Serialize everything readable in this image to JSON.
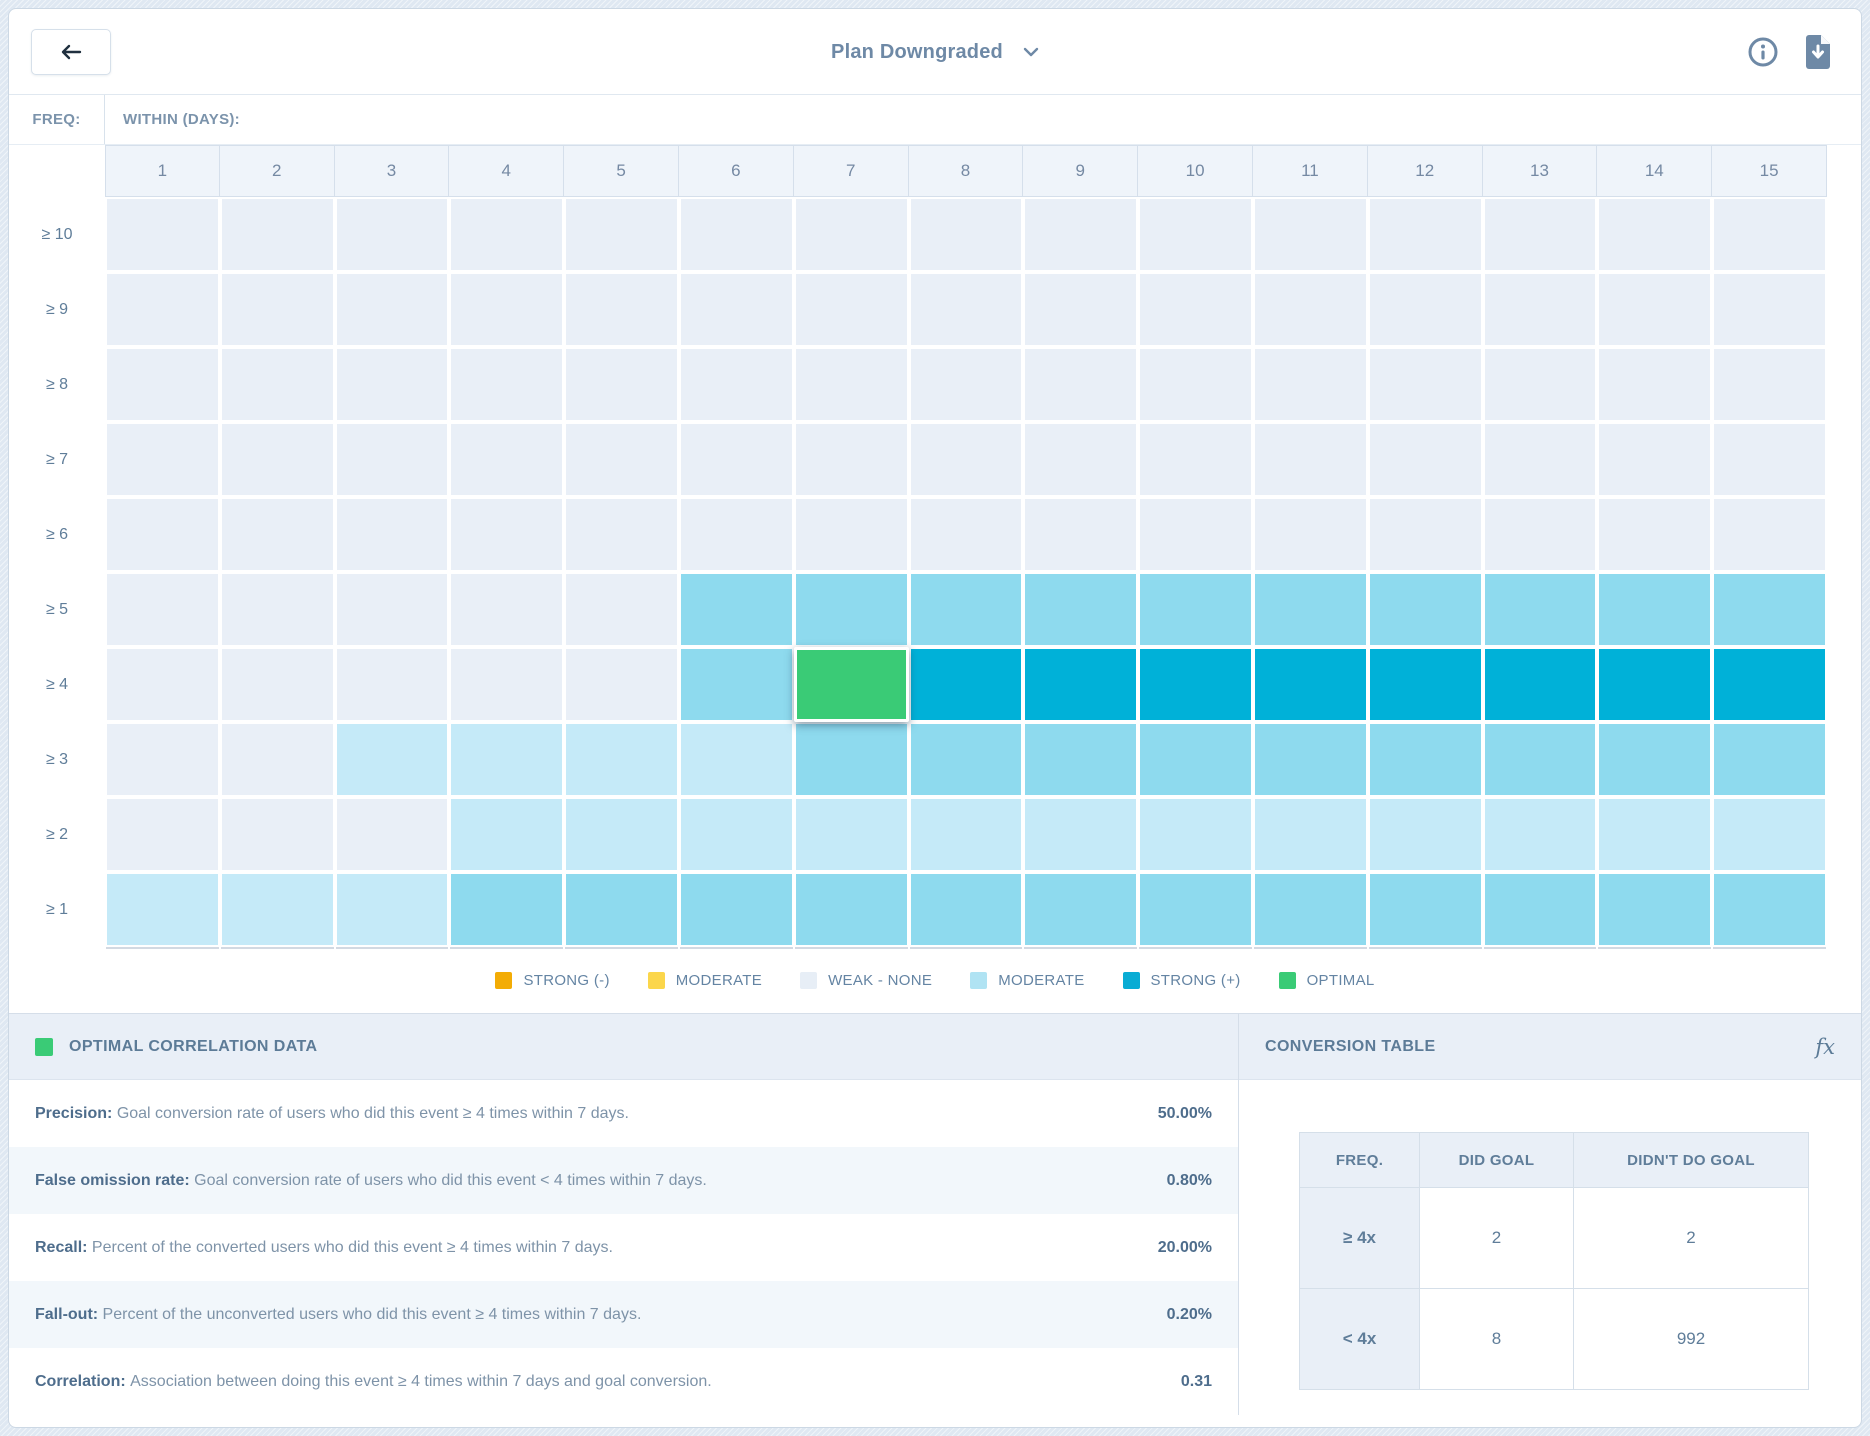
{
  "topbar": {
    "title": "Plan Downgraded",
    "icons": {
      "back": "back-arrow",
      "dropdown": "chevron-down",
      "info": "info-circle",
      "export": "download-document"
    }
  },
  "heatmap": {
    "freq_label": "FREQ:",
    "within_label": "WITHIN (DAYS):",
    "columns": [
      "1",
      "2",
      "3",
      "4",
      "5",
      "6",
      "7",
      "8",
      "9",
      "10",
      "11",
      "12",
      "13",
      "14",
      "15"
    ],
    "rows": [
      {
        "label": "≥ 10",
        "cells": [
          "w",
          "w",
          "w",
          "w",
          "w",
          "w",
          "w",
          "w",
          "w",
          "w",
          "w",
          "w",
          "w",
          "w",
          "w"
        ]
      },
      {
        "label": "≥ 9",
        "cells": [
          "w",
          "w",
          "w",
          "w",
          "w",
          "w",
          "w",
          "w",
          "w",
          "w",
          "w",
          "w",
          "w",
          "w",
          "w"
        ]
      },
      {
        "label": "≥ 8",
        "cells": [
          "w",
          "w",
          "w",
          "w",
          "w",
          "w",
          "w",
          "w",
          "w",
          "w",
          "w",
          "w",
          "w",
          "w",
          "w"
        ]
      },
      {
        "label": "≥ 7",
        "cells": [
          "w",
          "w",
          "w",
          "w",
          "w",
          "w",
          "w",
          "w",
          "w",
          "w",
          "w",
          "w",
          "w",
          "w",
          "w"
        ]
      },
      {
        "label": "≥ 6",
        "cells": [
          "w",
          "w",
          "w",
          "w",
          "w",
          "w",
          "w",
          "w",
          "w",
          "w",
          "w",
          "w",
          "w",
          "w",
          "w"
        ]
      },
      {
        "label": "≥ 5",
        "cells": [
          "w",
          "w",
          "w",
          "w",
          "w",
          "m",
          "m",
          "m",
          "m",
          "m",
          "m",
          "m",
          "m",
          "m",
          "m"
        ]
      },
      {
        "label": "≥ 4",
        "cells": [
          "w",
          "w",
          "w",
          "w",
          "w",
          "m",
          "o",
          "s",
          "s",
          "s",
          "s",
          "s",
          "s",
          "s",
          "s"
        ]
      },
      {
        "label": "≥ 3",
        "cells": [
          "w",
          "w",
          "l",
          "l",
          "l",
          "l",
          "m",
          "m",
          "m",
          "m",
          "m",
          "m",
          "m",
          "m",
          "m"
        ]
      },
      {
        "label": "≥ 2",
        "cells": [
          "w",
          "w",
          "w",
          "l",
          "l",
          "l",
          "l",
          "l",
          "l",
          "l",
          "l",
          "l",
          "l",
          "l",
          "l"
        ]
      },
      {
        "label": "≥ 1",
        "cells": [
          "l",
          "l",
          "l",
          "m",
          "m",
          "m",
          "m",
          "m",
          "m",
          "m",
          "m",
          "m",
          "m",
          "m",
          "m"
        ]
      }
    ],
    "selected": {
      "row_index": 6,
      "col_index": 6,
      "row_label": "≥ 4",
      "column": "7"
    },
    "colors": {
      "w": "#e9eff7",
      "l": "#c5eaf8",
      "m": "#8edaee",
      "s": "#00b1d8",
      "o": "#3acb76"
    }
  },
  "legend": {
    "items": [
      {
        "label": "STRONG (-)",
        "color": "#f3ac05",
        "pattern": false
      },
      {
        "label": "MODERATE",
        "color": "#fbd64b",
        "pattern": false
      },
      {
        "label": "WEAK - NONE",
        "color": "#e7eef6",
        "pattern": false
      },
      {
        "label": "MODERATE",
        "color": "#8edaee",
        "pattern": true
      },
      {
        "label": "STRONG (+)",
        "color": "#09acd4",
        "pattern": false
      },
      {
        "label": "OPTIMAL",
        "color": "#3acb76",
        "pattern": false
      }
    ]
  },
  "optimal_panel": {
    "title": "OPTIMAL CORRELATION DATA",
    "swatch_color": "#3acb76",
    "metrics": [
      {
        "label": "Precision: ",
        "description": "Goal conversion rate of users who did this event ≥ 4 times within 7 days.",
        "value": "50.00%"
      },
      {
        "label": "False omission rate: ",
        "description": "Goal conversion rate of users who did this event < 4 times within 7 days.",
        "value": "0.80%"
      },
      {
        "label": "Recall: ",
        "description": "Percent of the converted users who did this event ≥ 4 times within 7 days.",
        "value": "20.00%"
      },
      {
        "label": "Fall-out: ",
        "description": "Percent of the unconverted users who did this event ≥ 4 times within 7 days.",
        "value": "0.20%"
      },
      {
        "label": "Correlation: ",
        "description": "Association between doing this event ≥ 4 times within 7 days and goal conversion.",
        "value": "0.31"
      }
    ]
  },
  "conversion_panel": {
    "title": "CONVERSION TABLE",
    "fx_label": "fx",
    "table": {
      "headers": [
        "FREQ.",
        "DID GOAL",
        "DIDN'T DO GOAL"
      ],
      "rows": [
        {
          "freq": "≥ 4x",
          "did": "2",
          "didnt": "2"
        },
        {
          "freq": "< 4x",
          "did": "8",
          "didnt": "992"
        }
      ]
    }
  }
}
